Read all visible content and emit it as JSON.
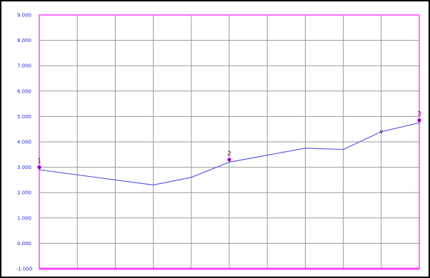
{
  "chart_data": {
    "type": "line",
    "title": "",
    "xlabel": "",
    "ylabel": "",
    "ylim": [
      -1,
      9
    ],
    "yticks": [
      "-1.000",
      "0.000",
      "1.000",
      "2.000",
      "3.000",
      "4.000",
      "5.000",
      "6.000",
      "7.000",
      "8.000",
      "9.000"
    ],
    "x_gridlines": 10,
    "grid": true,
    "series": [
      {
        "x": [
          0,
          3,
          4,
          5,
          7,
          8,
          9,
          10
        ],
        "values": [
          2.9,
          2.3,
          2.6,
          3.2,
          3.75,
          3.7,
          4.4,
          4.75
        ]
      }
    ],
    "markers": [
      {
        "label": "1",
        "x": 0,
        "y": 3.0
      },
      {
        "label": "2",
        "x": 5,
        "y": 3.3
      },
      {
        "label": "3",
        "x": 10,
        "y": 4.85
      }
    ],
    "colors": {
      "plot_border": "#ff44ff",
      "grid": "#9a9a9a",
      "line": "#5a5ae6",
      "tick_text": "#2b2bd6",
      "marker": "#9900cc",
      "bottom_axis": "#ff44ff"
    }
  }
}
